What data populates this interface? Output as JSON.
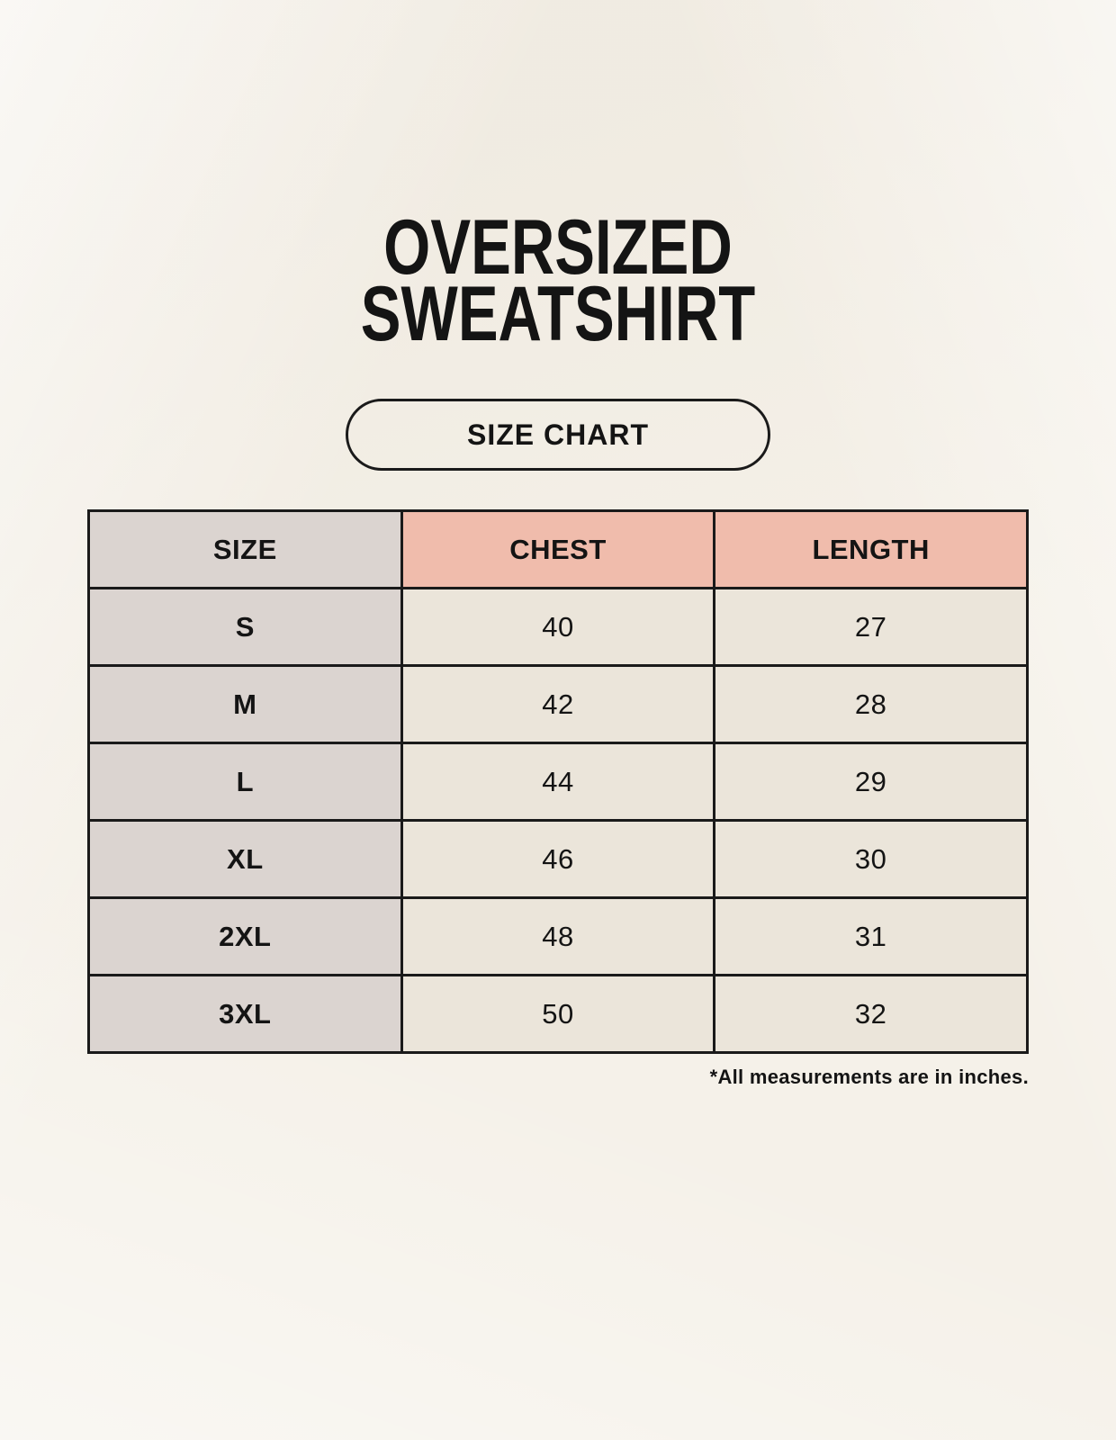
{
  "page": {
    "title_line1": "OVERSIZED",
    "title_line2": "SWEATSHIRT",
    "button_label": "SIZE CHART",
    "footnote": "*All measurements are in inches."
  },
  "colors": {
    "background": "#f5f1e9",
    "header_accent": "#f0bcac",
    "size_column": "#dbd4d0",
    "data_cell": "#ebe5da",
    "border": "#1a1a1a",
    "text": "#141414"
  },
  "chart_data": {
    "type": "table",
    "title": "OVERSIZED SWEATSHIRT",
    "columns": [
      "SIZE",
      "CHEST",
      "LENGTH"
    ],
    "rows": [
      {
        "size": "S",
        "chest": 40,
        "length": 27
      },
      {
        "size": "M",
        "chest": 42,
        "length": 28
      },
      {
        "size": "L",
        "chest": 44,
        "length": 29
      },
      {
        "size": "XL",
        "chest": 46,
        "length": 30
      },
      {
        "size": "2XL",
        "chest": 48,
        "length": 31
      },
      {
        "size": "3XL",
        "chest": 50,
        "length": 32
      }
    ],
    "units": "inches",
    "note": "*All measurements are in inches."
  }
}
